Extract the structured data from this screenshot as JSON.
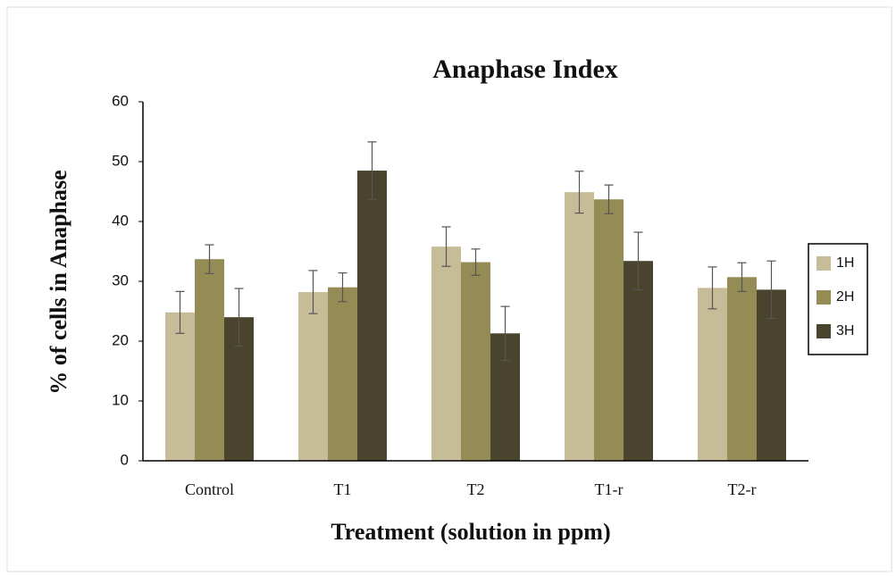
{
  "chart_data": {
    "type": "bar",
    "title": "Anaphase Index",
    "x_label": "Treatment (solution in ppm)",
    "y_label": "% of cells in Anaphase",
    "categories": [
      "Control",
      "T1",
      "T2",
      "T1-r",
      "T2-r"
    ],
    "series": [
      {
        "name": "1H",
        "color": "#c6bd98",
        "values": [
          24.8,
          28.2,
          35.8,
          44.9,
          28.9
        ],
        "errors": [
          3.5,
          3.6,
          3.3,
          3.5,
          3.5
        ]
      },
      {
        "name": "2H",
        "color": "#958c55",
        "values": [
          33.7,
          29,
          33.2,
          43.7,
          30.7
        ],
        "errors": [
          2.4,
          2.4,
          2.2,
          2.4,
          2.4
        ]
      },
      {
        "name": "3H",
        "color": "#4a432d",
        "values": [
          24,
          48.5,
          21.3,
          33.4,
          28.6
        ],
        "errors": [
          4.8,
          4.8,
          4.5,
          4.8,
          4.8
        ]
      }
    ],
    "ylim": [
      0,
      60
    ],
    "yticks": [
      0,
      10,
      20,
      30,
      40,
      50,
      60
    ],
    "grid": false,
    "legend": "right"
  }
}
